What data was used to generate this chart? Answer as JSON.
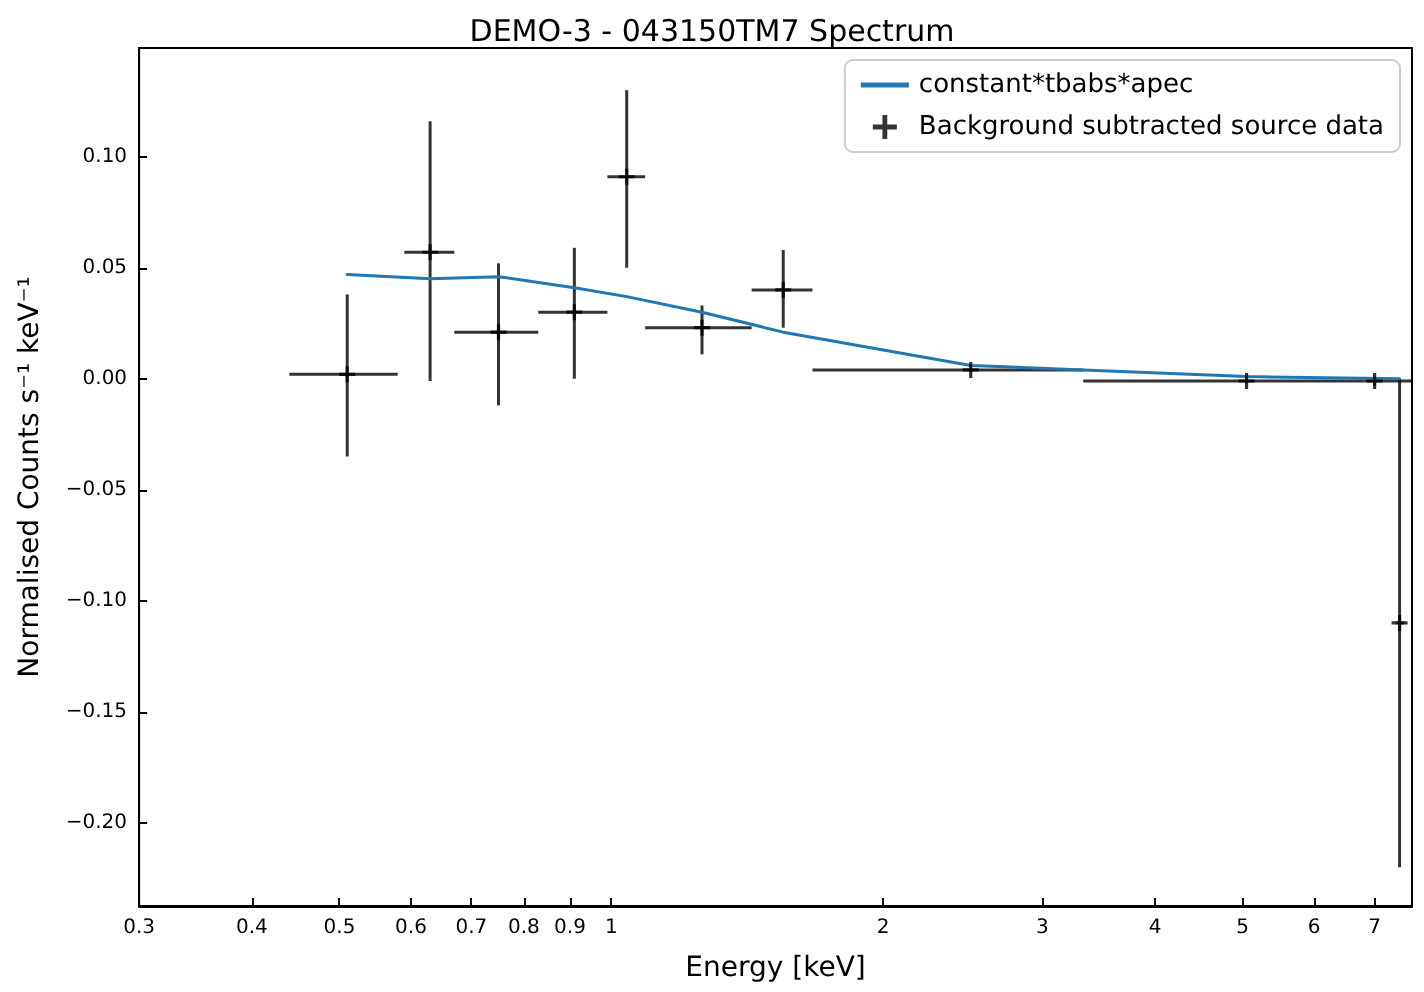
{
  "chart_data": {
    "type": "scatter",
    "title": "DEMO-3 - 043150TM7 Spectrum",
    "xlabel": "Energy [keV]",
    "ylabel": "Normalised Counts s⁻¹ keV⁻¹",
    "log": "x",
    "xlim": [
      0.3,
      7.7
    ],
    "ylim": [
      -0.2375,
      0.149
    ],
    "xticks": [
      0.3,
      0.4,
      0.5,
      0.6,
      0.7,
      0.8,
      0.9,
      1,
      2,
      3,
      4,
      5,
      6,
      7
    ],
    "yticks": [
      {
        "value": -0.2,
        "label": "−0.20"
      },
      {
        "value": -0.15,
        "label": "−0.15"
      },
      {
        "value": -0.1,
        "label": "−0.10"
      },
      {
        "value": -0.05,
        "label": "−0.05"
      },
      {
        "value": 0,
        "label": "0.00"
      },
      {
        "value": 0.05,
        "label": "0.05"
      },
      {
        "value": 0.1,
        "label": "0.10"
      }
    ],
    "grid": false,
    "legend": "top right",
    "series": [
      {
        "name": "constant*tbabs*apec",
        "type": "line",
        "color": "#1f77b4",
        "marker": "none",
        "line_style": "solid",
        "x": [
          0.51,
          0.63,
          0.75,
          0.91,
          1.04,
          1.26,
          1.55,
          2.5,
          3.33,
          5.05,
          7.46
        ],
        "values": [
          0.047,
          0.045,
          0.046,
          0.041,
          0.037,
          0.03,
          0.021,
          0.006,
          0.004,
          0.001,
          0.0
        ]
      },
      {
        "name": "Background subtracted source data",
        "type": "scatter",
        "color": "#000000",
        "marker": "cross",
        "x": [
          0.51,
          0.63,
          0.75,
          0.91,
          1.04,
          1.26,
          1.55,
          2.5,
          5.05,
          7.0,
          7.46
        ],
        "values": [
          0.002,
          0.057,
          0.021,
          0.03,
          0.091,
          0.023,
          0.04,
          0.004,
          -0.001,
          -0.001,
          -0.11
        ],
        "errors": [
          [
            -0.035,
            0.038
          ],
          [
            -0.001,
            0.116
          ],
          [
            -0.012,
            0.052
          ],
          [
            0.0,
            0.059
          ],
          [
            0.05,
            0.13
          ],
          [
            0.011,
            0.033
          ],
          [
            0.023,
            0.058
          ],
          [
            0.003,
            0.005
          ],
          [
            -0.002,
            0.0
          ],
          [
            -0.003,
            0.001
          ],
          [
            -0.22,
            0.0
          ]
        ],
        "xerrors": [
          [
            0.44,
            0.58
          ],
          [
            0.59,
            0.67
          ],
          [
            0.67,
            0.83
          ],
          [
            0.83,
            0.99
          ],
          [
            0.99,
            1.09
          ],
          [
            1.09,
            1.43
          ],
          [
            1.43,
            1.67
          ],
          [
            1.67,
            3.33
          ],
          [
            3.33,
            6.8
          ],
          [
            6.8,
            7.7
          ],
          [
            7.4,
            7.55
          ]
        ]
      }
    ]
  }
}
